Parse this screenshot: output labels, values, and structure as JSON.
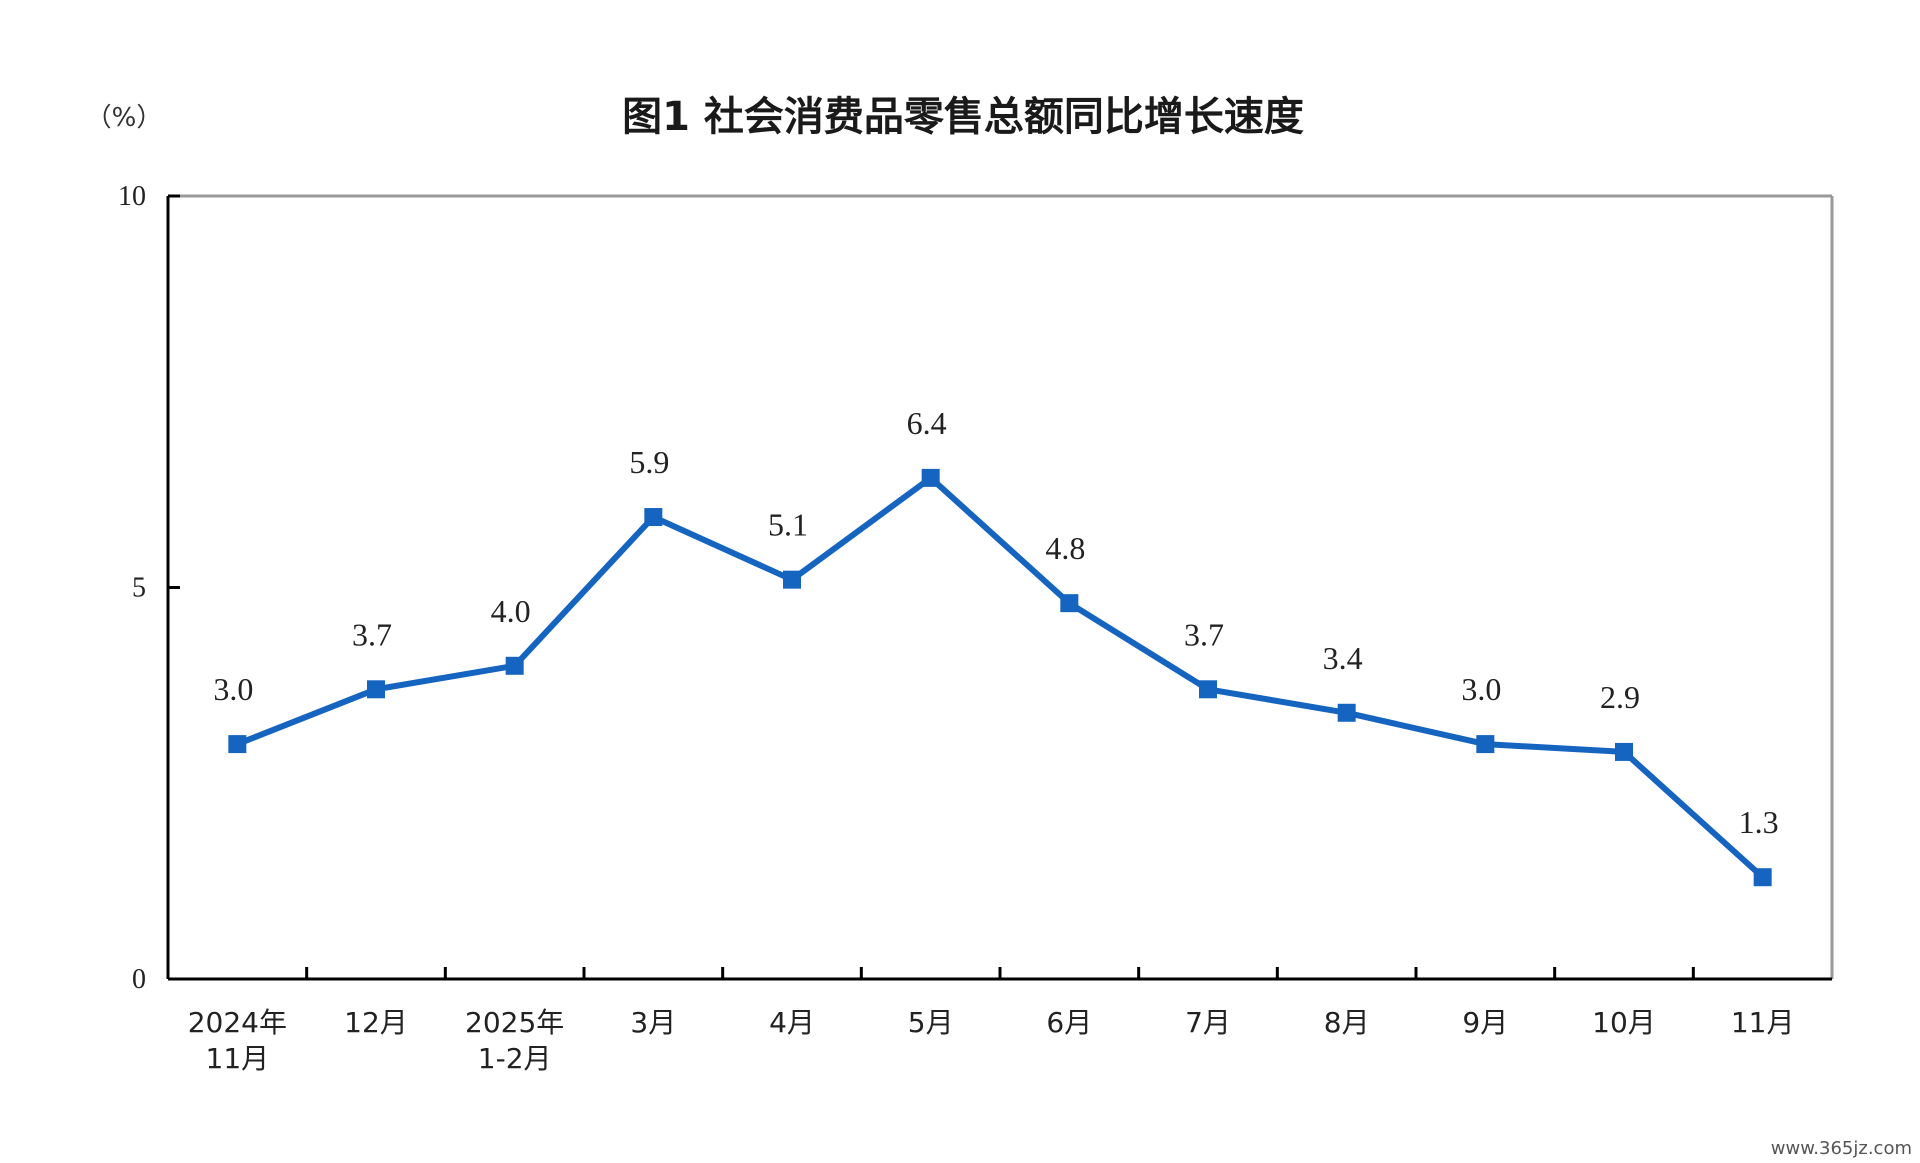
{
  "chart_data": {
    "type": "line",
    "title": "图1  社会消费品零售总额同比增长速度",
    "ylabel": "（%）",
    "xlabel": "",
    "ylim": [
      0,
      10
    ],
    "yticks": [
      "0",
      "5",
      "10"
    ],
    "categories": [
      [
        "2024年",
        "11月"
      ],
      [
        "12月"
      ],
      [
        "2025年",
        "1-2月"
      ],
      [
        "3月"
      ],
      [
        "4月"
      ],
      [
        "5月"
      ],
      [
        "6月"
      ],
      [
        "7月"
      ],
      [
        "8月"
      ],
      [
        "9月"
      ],
      [
        "10月"
      ],
      [
        "11月"
      ]
    ],
    "values": [
      3.0,
      3.7,
      4.0,
      5.9,
      5.1,
      6.4,
      4.8,
      3.7,
      3.4,
      3.0,
      2.9,
      1.3
    ],
    "data_labels": [
      "3.0",
      "3.7",
      "4.0",
      "5.9",
      "5.1",
      "6.4",
      "4.8",
      "3.7",
      "3.4",
      "3.0",
      "2.9",
      "1.3"
    ],
    "grid": false,
    "series_color": "#1565C0",
    "axis_color": "#000000",
    "frame_color": "#999999"
  },
  "watermark": "www.365jz.com"
}
